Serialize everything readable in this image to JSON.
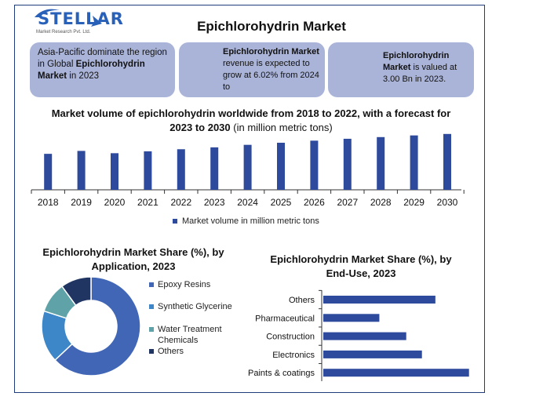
{
  "brand": {
    "name": "STELLAR",
    "subtitle": "Market Research Pvt. Ltd."
  },
  "page_title": "Epichlorohydrin Market",
  "cards": {
    "region": {
      "line1": "Asia-Pacific dominate the region in Global",
      "bold": "Epichlorohydrin Market",
      "line2": "in 2023"
    },
    "growth": {
      "bold": "Epichlorohydrin Market",
      "text": "revenue is expected to grow at 6.02% from 2024 to"
    },
    "value": {
      "bold": "Epichlorohydrin Market",
      "text": "is valued at 3.00 Bn in 2023."
    },
    "icons": {
      "growth": "stopwatch-icon",
      "value": "target-icon"
    }
  },
  "colors": {
    "card_bg": "#aab4d8",
    "bar": "#2e4a9c",
    "frame": "#1f3d7a"
  },
  "chart_data": [
    {
      "type": "bar",
      "title_bold": "Market volume of epichlorohydrin worldwide from 2018 to 2022, with a forecast for 2023 to 2030",
      "title_rest": "(in million metric tons)",
      "categories": [
        "2018",
        "2019",
        "2020",
        "2021",
        "2022",
        "2023",
        "2024",
        "2025",
        "2026",
        "2027",
        "2028",
        "2029",
        "2030"
      ],
      "series": [
        {
          "name": "Market volume in million metric tons",
          "values": [
            1.72,
            1.86,
            1.75,
            1.84,
            1.94,
            2.03,
            2.15,
            2.25,
            2.35,
            2.44,
            2.52,
            2.6,
            2.67
          ]
        }
      ],
      "ylim": [
        0,
        3.0
      ],
      "grid": false,
      "legend": "bottom"
    },
    {
      "type": "pie",
      "title": "Epichlorohydrin Market Share (%), by Application, 2023",
      "labels": [
        "Epoxy Resins",
        "Synthetic Glycerine",
        "Water Treatment Chemicals",
        "Others"
      ],
      "values": [
        63,
        17,
        10,
        10
      ],
      "colors": [
        "#4066b5",
        "#3d86c8",
        "#5fa3a8",
        "#213563"
      ],
      "legend": "right"
    },
    {
      "type": "bar",
      "orientation": "horizontal",
      "title": "Epichlorohydrin Market Share (%), by End-Use, 2023",
      "categories": [
        "Others",
        "Pharmaceutical",
        "Construction",
        "Electronics",
        "Paints & coatings"
      ],
      "values": [
        25,
        12.5,
        18.5,
        22,
        32.5
      ],
      "xlim": [
        0,
        35
      ],
      "grid": false
    }
  ]
}
